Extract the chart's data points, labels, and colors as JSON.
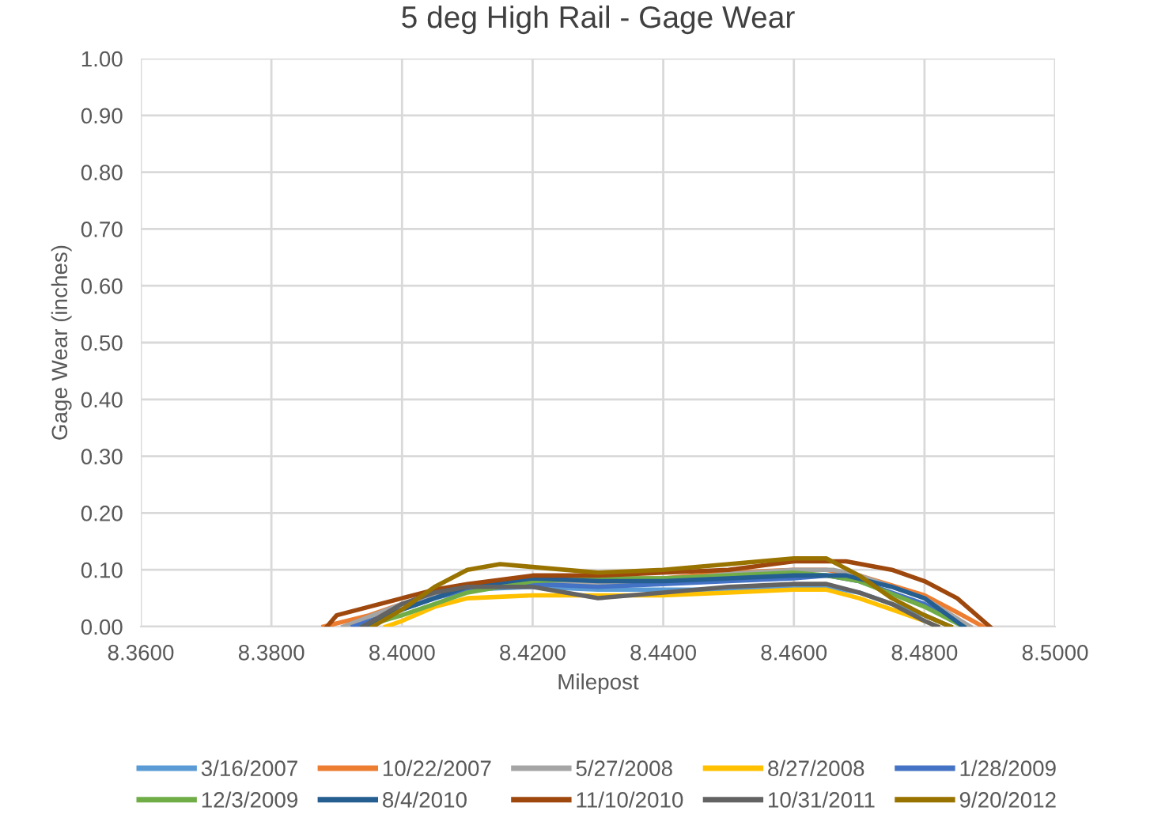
{
  "chart_data": {
    "type": "line",
    "title": "5 deg High Rail - Gage Wear",
    "xlabel": "Milepost",
    "ylabel": "Gage Wear (inches)",
    "xlim": [
      8.36,
      8.5
    ],
    "ylim": [
      0,
      1
    ],
    "xticks": [
      {
        "value": 8.36,
        "label": "8.3600"
      },
      {
        "value": 8.38,
        "label": "8.3800"
      },
      {
        "value": 8.4,
        "label": "8.4000"
      },
      {
        "value": 8.42,
        "label": "8.4200"
      },
      {
        "value": 8.44,
        "label": "8.4400"
      },
      {
        "value": 8.46,
        "label": "8.4600"
      },
      {
        "value": 8.48,
        "label": "8.4800"
      },
      {
        "value": 8.5,
        "label": "8.5000"
      }
    ],
    "yticks": [
      {
        "value": 0,
        "label": "0.00"
      },
      {
        "value": 0.1,
        "label": "0.10"
      },
      {
        "value": 0.2,
        "label": "0.20"
      },
      {
        "value": 0.3,
        "label": "0.30"
      },
      {
        "value": 0.4,
        "label": "0.40"
      },
      {
        "value": 0.5,
        "label": "0.50"
      },
      {
        "value": 0.6,
        "label": "0.60"
      },
      {
        "value": 0.7,
        "label": "0.70"
      },
      {
        "value": 0.8,
        "label": "0.80"
      },
      {
        "value": 0.9,
        "label": "0.90"
      },
      {
        "value": 1,
        "label": "1.00"
      }
    ],
    "grid": true,
    "legend": "bottom",
    "marker": "none",
    "line_style": "solid",
    "series": [
      {
        "name": "3/16/2007",
        "color": "#5b9bd5",
        "x": [
          8.3935,
          8.4,
          8.405,
          8.41,
          8.42,
          8.43,
          8.44,
          8.45,
          8.46,
          8.465,
          8.47,
          8.475,
          8.48,
          8.484
        ],
        "values": [
          0,
          0.03,
          0.055,
          0.065,
          0.07,
          0.065,
          0.065,
          0.065,
          0.07,
          0.07,
          0.06,
          0.04,
          0.02,
          0
        ]
      },
      {
        "name": "10/22/2007",
        "color": "#ed7d31",
        "x": [
          8.388,
          8.395,
          8.4,
          8.41,
          8.42,
          8.43,
          8.44,
          8.45,
          8.46,
          8.465,
          8.47,
          8.48,
          8.485,
          8.489
        ],
        "values": [
          0,
          0.02,
          0.04,
          0.07,
          0.085,
          0.085,
          0.085,
          0.095,
          0.1,
          0.1,
          0.09,
          0.055,
          0.025,
          0
        ]
      },
      {
        "name": "5/27/2008",
        "color": "#a5a5a5",
        "x": [
          8.391,
          8.4,
          8.41,
          8.42,
          8.43,
          8.44,
          8.45,
          8.46,
          8.466,
          8.47,
          8.48,
          8.487
        ],
        "values": [
          0,
          0.04,
          0.07,
          0.08,
          0.075,
          0.08,
          0.093,
          0.1,
          0.1,
          0.09,
          0.05,
          0
        ]
      },
      {
        "name": "8/27/2008",
        "color": "#ffc000",
        "x": [
          8.3975,
          8.4,
          8.405,
          8.41,
          8.42,
          8.43,
          8.44,
          8.45,
          8.46,
          8.465,
          8.47,
          8.475,
          8.48,
          8.482
        ],
        "values": [
          0,
          0.01,
          0.035,
          0.05,
          0.055,
          0.055,
          0.055,
          0.06,
          0.065,
          0.065,
          0.05,
          0.03,
          0.01,
          0
        ]
      },
      {
        "name": "1/28/2009",
        "color": "#4472c4",
        "x": [
          8.3925,
          8.4,
          8.405,
          8.41,
          8.42,
          8.43,
          8.44,
          8.45,
          8.46,
          8.465,
          8.47,
          8.48,
          8.486
        ],
        "values": [
          0,
          0.03,
          0.05,
          0.065,
          0.075,
          0.07,
          0.075,
          0.08,
          0.085,
          0.09,
          0.08,
          0.04,
          0
        ]
      },
      {
        "name": "12/3/2009",
        "color": "#70ad47",
        "x": [
          8.394,
          8.4,
          8.405,
          8.41,
          8.42,
          8.43,
          8.44,
          8.45,
          8.46,
          8.465,
          8.47,
          8.48,
          8.486
        ],
        "values": [
          0,
          0.02,
          0.04,
          0.06,
          0.08,
          0.085,
          0.085,
          0.09,
          0.095,
          0.09,
          0.08,
          0.035,
          0
        ]
      },
      {
        "name": "8/4/2010",
        "color": "#255e91",
        "x": [
          8.394,
          8.4,
          8.41,
          8.42,
          8.43,
          8.44,
          8.45,
          8.46,
          8.468,
          8.475,
          8.48,
          8.486
        ],
        "values": [
          0,
          0.03,
          0.07,
          0.085,
          0.08,
          0.08,
          0.085,
          0.09,
          0.09,
          0.07,
          0.05,
          0
        ]
      },
      {
        "name": "11/10/2010",
        "color": "#9e480e",
        "x": [
          8.3885,
          8.39,
          8.395,
          8.4,
          8.405,
          8.41,
          8.42,
          8.43,
          8.44,
          8.45,
          8.46,
          8.468,
          8.475,
          8.48,
          8.485,
          8.49
        ],
        "values": [
          0,
          0.02,
          0.035,
          0.05,
          0.065,
          0.075,
          0.09,
          0.09,
          0.095,
          0.1,
          0.115,
          0.115,
          0.1,
          0.08,
          0.05,
          0
        ]
      },
      {
        "name": "10/31/2011",
        "color": "#636363",
        "x": [
          8.394,
          8.4,
          8.405,
          8.41,
          8.42,
          8.43,
          8.44,
          8.45,
          8.46,
          8.465,
          8.47,
          8.475,
          8.48,
          8.482
        ],
        "values": [
          0,
          0.04,
          0.06,
          0.07,
          0.07,
          0.05,
          0.06,
          0.07,
          0.075,
          0.075,
          0.06,
          0.04,
          0.01,
          0
        ]
      },
      {
        "name": "9/20/2012",
        "color": "#997300",
        "x": [
          8.3955,
          8.4,
          8.405,
          8.41,
          8.415,
          8.42,
          8.43,
          8.44,
          8.45,
          8.46,
          8.465,
          8.47,
          8.475,
          8.48,
          8.484
        ],
        "values": [
          0,
          0.03,
          0.07,
          0.1,
          0.11,
          0.105,
          0.095,
          0.1,
          0.11,
          0.12,
          0.12,
          0.09,
          0.05,
          0.02,
          0
        ]
      }
    ]
  }
}
